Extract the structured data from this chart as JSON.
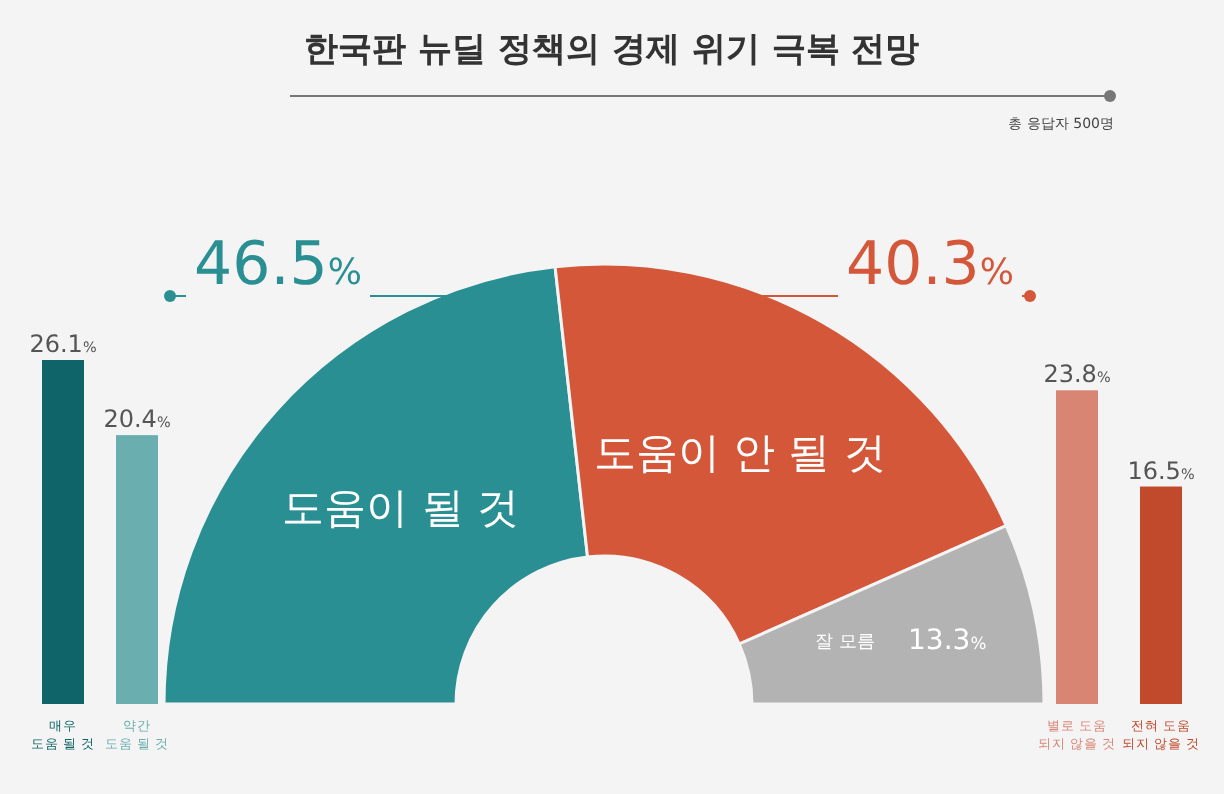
{
  "chart_data": [
    {
      "type": "bar",
      "categories": [
        "매우\n도움 될 것",
        "약간\n도움 될 것"
      ],
      "values": [
        26.1,
        20.4
      ],
      "colors": [
        "#0e6468",
        "#6aaeb0"
      ],
      "value_labels": [
        "26.1%",
        "20.4%"
      ]
    },
    {
      "type": "donut",
      "title": "한국판 뉴딜 정책의 경제 위기 극복 전망",
      "annotations": [
        "총 응답자 500명"
      ],
      "categories": [
        "도움이 될 것",
        "도움이 안 될 것",
        "잘 모름"
      ],
      "values": [
        46.5,
        40.3,
        13.3
      ],
      "colors": [
        "#2a8f92",
        "#d4573a",
        "#b3b3b3"
      ],
      "value_labels": [
        "46.5%",
        "40.3%",
        "13.3%"
      ]
    },
    {
      "type": "bar",
      "categories": [
        "별로 도움\n되지 않을 것",
        "전혀 도움\n되지 않을 것"
      ],
      "values": [
        23.8,
        16.5
      ],
      "colors": [
        "#d98574",
        "#c24a2c"
      ],
      "value_labels": [
        "23.8%",
        "16.5%"
      ]
    }
  ]
}
